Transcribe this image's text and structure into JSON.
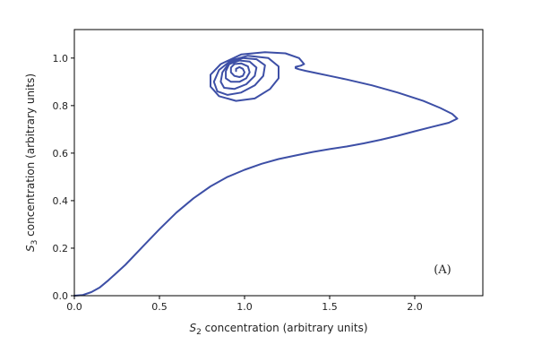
{
  "chart_data": {
    "type": "line",
    "title": "",
    "xlabel_main": "S",
    "xlabel_sub": "2",
    "xlabel_rest": " concentration (arbitrary units)",
    "ylabel_main": "S",
    "ylabel_sub": "3",
    "ylabel_rest": " concentration (arbitrary units)",
    "xlim": [
      0.0,
      2.4
    ],
    "ylim": [
      0.0,
      1.12
    ],
    "xticks": [
      0.0,
      0.5,
      1.0,
      1.5,
      2.0
    ],
    "xtick_labels": [
      "0.0",
      "0.5",
      "1.0",
      "1.5",
      "2.0"
    ],
    "yticks": [
      0.0,
      0.2,
      0.4,
      0.6,
      0.8,
      1.0
    ],
    "ytick_labels": [
      "0.0",
      "0.2",
      "0.4",
      "0.6",
      "0.8",
      "1.0"
    ],
    "grid": false,
    "legend": "none",
    "line_color": "#3d4fa6",
    "annotation": "(A)",
    "series": [
      {
        "x": [
          0.0,
          0.05,
          0.1,
          0.15,
          0.2,
          0.3,
          0.4,
          0.5,
          0.6,
          0.7,
          0.8,
          0.9,
          1.0,
          1.1,
          1.2,
          1.3,
          1.4,
          1.5,
          1.6,
          1.7,
          1.8,
          1.9,
          2.0,
          2.1,
          2.2,
          2.25,
          2.22,
          2.15,
          2.05,
          1.9,
          1.75,
          1.6,
          1.5,
          1.42,
          1.36,
          1.32,
          1.3,
          1.3,
          1.33,
          1.35,
          1.32,
          1.24,
          1.12,
          0.98,
          0.86,
          0.8,
          0.8,
          0.85,
          0.95,
          1.06,
          1.15,
          1.2,
          1.2,
          1.14,
          1.02,
          0.92,
          0.85,
          0.82,
          0.84,
          0.9,
          0.98,
          1.06,
          1.11,
          1.12,
          1.07,
          0.99,
          0.91,
          0.87,
          0.86,
          0.88,
          0.94,
          1.01,
          1.06,
          1.07,
          1.03,
          0.97,
          0.91,
          0.89,
          0.89,
          0.92,
          0.97,
          1.01,
          1.03,
          1.02,
          0.98,
          0.94,
          0.92,
          0.92,
          0.94,
          0.97,
          0.99,
          1.0,
          0.99,
          0.97,
          0.95,
          0.95
        ],
        "y": [
          0.0,
          0.003,
          0.015,
          0.035,
          0.065,
          0.13,
          0.205,
          0.28,
          0.35,
          0.41,
          0.46,
          0.5,
          0.53,
          0.555,
          0.575,
          0.59,
          0.605,
          0.617,
          0.628,
          0.641,
          0.656,
          0.673,
          0.692,
          0.71,
          0.728,
          0.745,
          0.765,
          0.79,
          0.82,
          0.855,
          0.885,
          0.91,
          0.925,
          0.937,
          0.946,
          0.953,
          0.958,
          0.963,
          0.968,
          0.975,
          1.0,
          1.02,
          1.025,
          1.015,
          0.975,
          0.93,
          0.88,
          0.84,
          0.82,
          0.83,
          0.87,
          0.915,
          0.965,
          1.0,
          1.01,
          0.99,
          0.95,
          0.9,
          0.86,
          0.845,
          0.855,
          0.885,
          0.925,
          0.97,
          0.995,
          1.0,
          0.98,
          0.94,
          0.9,
          0.875,
          0.87,
          0.89,
          0.925,
          0.96,
          0.985,
          0.99,
          0.975,
          0.945,
          0.915,
          0.9,
          0.9,
          0.915,
          0.94,
          0.965,
          0.978,
          0.975,
          0.96,
          0.94,
          0.925,
          0.92,
          0.925,
          0.94,
          0.955,
          0.962,
          0.955,
          0.945
        ]
      }
    ]
  }
}
